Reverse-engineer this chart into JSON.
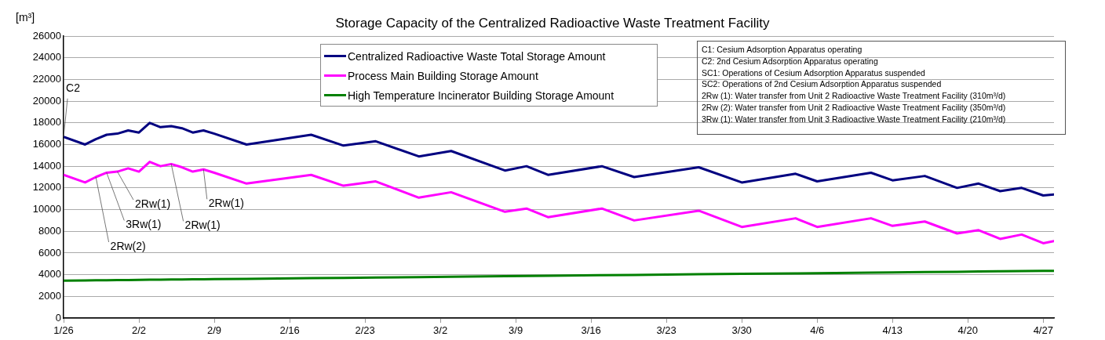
{
  "chart_data": {
    "type": "line",
    "title": "Storage Capacity of the Centralized Radioactive Waste Treatment Facility",
    "ylabel": "[m³]",
    "x": [
      "--01-26",
      "--01-28",
      "--01-29",
      "--01-30",
      "--01-31",
      "--02-01",
      "--02-02",
      "--02-03",
      "--02-04",
      "--02-05",
      "--02-06",
      "--02-07",
      "--02-08",
      "--02-09",
      "--02-12",
      "--02-18",
      "--02-21",
      "--02-24",
      "--02-28",
      "--03-03",
      "--03-08",
      "--03-10",
      "--03-12",
      "--03-17",
      "--03-20",
      "--03-26",
      "--03-30",
      "--04-04",
      "--04-06",
      "--04-11",
      "--04-13",
      "--04-16",
      "--04-19",
      "--04-21",
      "--04-23",
      "--04-25",
      "--04-27",
      "--04-28"
    ],
    "series": [
      {
        "name": "Centralized Radioactive Waste Total Storage Amount",
        "color": "#000080",
        "values": [
          16700,
          16000,
          16500,
          16900,
          17000,
          17300,
          17100,
          18000,
          17600,
          17700,
          17500,
          17100,
          17300,
          17000,
          16000,
          16900,
          15900,
          16300,
          14900,
          15400,
          13600,
          14000,
          13200,
          14000,
          13000,
          13900,
          12500,
          13300,
          12600,
          13400,
          12700,
          13100,
          12000,
          12400,
          11700,
          12000,
          11300,
          11400
        ]
      },
      {
        "name": "Process Main Building Storage Amount",
        "color": "#ff00ff",
        "values": [
          13200,
          12500,
          13000,
          13400,
          13500,
          13800,
          13500,
          14400,
          14000,
          14200,
          13900,
          13500,
          13700,
          13400,
          12400,
          13200,
          12200,
          12600,
          11100,
          11600,
          9800,
          10100,
          9300,
          10100,
          9000,
          9900,
          8400,
          9200,
          8400,
          9200,
          8500,
          8900,
          7800,
          8100,
          7300,
          7700,
          6900,
          7100
        ]
      },
      {
        "name": "High Temperature Incinerator Building Storage Amount",
        "color": "#008000",
        "values": [
          3450,
          3470,
          3480,
          3490,
          3500,
          3510,
          3520,
          3530,
          3540,
          3550,
          3560,
          3570,
          3580,
          3590,
          3620,
          3680,
          3710,
          3740,
          3780,
          3810,
          3860,
          3880,
          3900,
          3950,
          3980,
          4040,
          4080,
          4120,
          4140,
          4190,
          4210,
          4240,
          4270,
          4290,
          4310,
          4330,
          4350,
          4360
        ]
      }
    ],
    "xlim": [
      "--01-26",
      "--04-28"
    ],
    "xticks": [
      {
        "value": "--01-26",
        "label": "1/26"
      },
      {
        "value": "--02-02",
        "label": "2/2"
      },
      {
        "value": "--02-09",
        "label": "2/9"
      },
      {
        "value": "--02-16",
        "label": "2/16"
      },
      {
        "value": "--02-23",
        "label": "2/23"
      },
      {
        "value": "--03-02",
        "label": "3/2"
      },
      {
        "value": "--03-09",
        "label": "3/9"
      },
      {
        "value": "--03-16",
        "label": "3/16"
      },
      {
        "value": "--03-23",
        "label": "3/23"
      },
      {
        "value": "--03-30",
        "label": "3/30"
      },
      {
        "value": "--04-06",
        "label": "4/6"
      },
      {
        "value": "--04-13",
        "label": "4/13"
      },
      {
        "value": "--04-20",
        "label": "4/20"
      },
      {
        "value": "--04-27",
        "label": "4/27"
      }
    ],
    "ylim": [
      0,
      26000
    ],
    "yticks": [
      0,
      2000,
      4000,
      6000,
      8000,
      10000,
      12000,
      14000,
      16000,
      18000,
      20000,
      22000,
      24000,
      26000
    ],
    "grid": "y",
    "legend": "top",
    "marker": "none",
    "line_style": "solid",
    "annotations": [
      {
        "text": "C2",
        "x": "--01-26",
        "y": 16700
      },
      {
        "text": "2Rw(2)",
        "x": "--01-29",
        "y": 13000
      },
      {
        "text": "3Rw(1)",
        "x": "--01-30",
        "y": 13400
      },
      {
        "text": "2Rw(1)",
        "x": "--01-31",
        "y": 13500
      },
      {
        "text": "2Rw(1)",
        "x": "--02-08",
        "y": 13700
      },
      {
        "text": "2Rw(1)",
        "x": "--02-05",
        "y": 14200
      },
      "C1: Cesium Adsorption Apparatus operating",
      "C2: 2nd Cesium Adsorption Apparatus operating",
      "SC1: Operations of Cesium Adsorption Apparatus suspended",
      "SC2: Operations of 2nd Cesium Adsorption  Apparatus suspended",
      "2Rw (1): Water transfer from Unit 2 Radioactive Waste Treatment Facility (310m³/d)",
      "2Rw (2): Water transfer from Unit 2 Radioactive Waste Treatment Facility (350m³/d)",
      "3Rw (1): Water transfer from Unit 3 Radioactive Waste Treatment Facility (210m³/d)"
    ]
  }
}
